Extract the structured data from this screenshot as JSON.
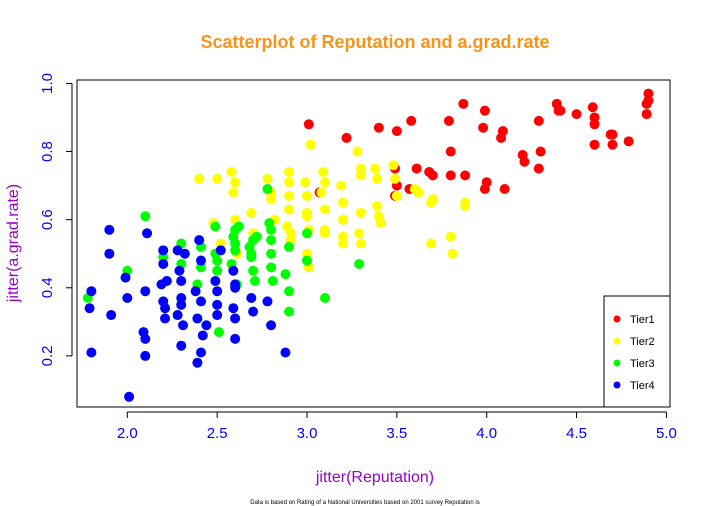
{
  "colors": {
    "title": "#f7941d",
    "axis_label": "#9900cc",
    "tick_label": "#0000ff",
    "axis_line": "#000000"
  },
  "chart_data": {
    "type": "scatter",
    "title": "Scatterplot of Reputation and a.grad.rate",
    "xlabel": "jitter(Reputation)",
    "ylabel": "jitter(a.grad.rate)",
    "xlim": [
      1.72,
      5.02
    ],
    "ylim": [
      0.05,
      1.01
    ],
    "xticks": [
      "2.0",
      "2.5",
      "3.0",
      "3.5",
      "4.0",
      "4.5",
      "5.0"
    ],
    "yticks": [
      "0.2",
      "0.4",
      "0.6",
      "0.8",
      "1.0"
    ],
    "legend_position": "bottom-right",
    "footnote": "Data is based on Rating of a National Universities based on 2001 survey Reputation is",
    "series": [
      {
        "name": "Tier1",
        "color": "#ff0000",
        "points": [
          [
            3.01,
            0.88
          ],
          [
            3.07,
            0.68
          ],
          [
            3.22,
            0.84
          ],
          [
            3.4,
            0.87
          ],
          [
            3.5,
            0.86
          ],
          [
            3.58,
            0.89
          ],
          [
            3.49,
            0.75
          ],
          [
            3.5,
            0.7
          ],
          [
            3.49,
            0.67
          ],
          [
            3.57,
            0.69
          ],
          [
            3.61,
            0.75
          ],
          [
            3.68,
            0.74
          ],
          [
            3.7,
            0.73
          ],
          [
            3.79,
            0.89
          ],
          [
            3.8,
            0.8
          ],
          [
            3.8,
            0.73
          ],
          [
            3.87,
            0.94
          ],
          [
            3.88,
            0.73
          ],
          [
            3.98,
            0.87
          ],
          [
            3.99,
            0.92
          ],
          [
            3.99,
            0.69
          ],
          [
            4.0,
            0.71
          ],
          [
            4.08,
            0.84
          ],
          [
            4.09,
            0.86
          ],
          [
            4.1,
            0.69
          ],
          [
            4.2,
            0.79
          ],
          [
            4.21,
            0.77
          ],
          [
            4.29,
            0.89
          ],
          [
            4.3,
            0.8
          ],
          [
            4.29,
            0.75
          ],
          [
            4.39,
            0.94
          ],
          [
            4.41,
            0.92
          ],
          [
            4.4,
            0.92
          ],
          [
            4.5,
            0.91
          ],
          [
            4.59,
            0.93
          ],
          [
            4.6,
            0.9
          ],
          [
            4.6,
            0.88
          ],
          [
            4.6,
            0.82
          ],
          [
            4.7,
            0.85
          ],
          [
            4.7,
            0.82
          ],
          [
            4.69,
            0.85
          ],
          [
            4.79,
            0.83
          ],
          [
            4.89,
            0.94
          ],
          [
            4.9,
            0.97
          ],
          [
            4.89,
            0.91
          ],
          [
            4.9,
            0.95
          ]
        ]
      },
      {
        "name": "Tier2",
        "color": "#ffff00",
        "points": [
          [
            2.4,
            0.72
          ],
          [
            2.5,
            0.72
          ],
          [
            2.58,
            0.74
          ],
          [
            2.6,
            0.71
          ],
          [
            2.59,
            0.68
          ],
          [
            2.6,
            0.6
          ],
          [
            2.69,
            0.62
          ],
          [
            2.7,
            0.56
          ],
          [
            2.78,
            0.72
          ],
          [
            2.8,
            0.66
          ],
          [
            2.8,
            0.68
          ],
          [
            2.82,
            0.6
          ],
          [
            2.9,
            0.74
          ],
          [
            2.9,
            0.71
          ],
          [
            2.9,
            0.67
          ],
          [
            2.9,
            0.63
          ],
          [
            2.89,
            0.58
          ],
          [
            2.91,
            0.56
          ],
          [
            2.91,
            0.54
          ],
          [
            2.99,
            0.71
          ],
          [
            3.0,
            0.67
          ],
          [
            3.0,
            0.62
          ],
          [
            3.0,
            0.61
          ],
          [
            3.01,
            0.57
          ],
          [
            3.0,
            0.5
          ],
          [
            3.01,
            0.46
          ],
          [
            3.02,
            0.82
          ],
          [
            3.09,
            0.74
          ],
          [
            3.1,
            0.71
          ],
          [
            3.08,
            0.68
          ],
          [
            3.1,
            0.63
          ],
          [
            3.1,
            0.57
          ],
          [
            3.1,
            0.56
          ],
          [
            3.19,
            0.7
          ],
          [
            3.2,
            0.65
          ],
          [
            3.2,
            0.6
          ],
          [
            3.2,
            0.6
          ],
          [
            3.2,
            0.55
          ],
          [
            3.2,
            0.53
          ],
          [
            3.28,
            0.8
          ],
          [
            3.3,
            0.75
          ],
          [
            3.3,
            0.73
          ],
          [
            3.3,
            0.62
          ],
          [
            3.29,
            0.56
          ],
          [
            3.3,
            0.53
          ],
          [
            3.38,
            0.75
          ],
          [
            3.39,
            0.72
          ],
          [
            3.39,
            0.64
          ],
          [
            3.4,
            0.61
          ],
          [
            3.41,
            0.59
          ],
          [
            3.48,
            0.76
          ],
          [
            3.49,
            0.72
          ],
          [
            3.5,
            0.67
          ],
          [
            3.6,
            0.69
          ],
          [
            3.62,
            0.68
          ],
          [
            3.69,
            0.65
          ],
          [
            3.7,
            0.66
          ],
          [
            3.69,
            0.53
          ],
          [
            3.8,
            0.55
          ],
          [
            3.81,
            0.5
          ],
          [
            3.88,
            0.65
          ],
          [
            3.88,
            0.64
          ],
          [
            2.48,
            0.59
          ],
          [
            2.52,
            0.53
          ],
          [
            2.61,
            0.5
          ]
        ]
      },
      {
        "name": "Tier3",
        "color": "#00ff00",
        "points": [
          [
            1.78,
            0.37
          ],
          [
            2.0,
            0.45
          ],
          [
            2.1,
            0.61
          ],
          [
            2.2,
            0.49
          ],
          [
            2.3,
            0.53
          ],
          [
            2.3,
            0.47
          ],
          [
            2.39,
            0.41
          ],
          [
            2.41,
            0.52
          ],
          [
            2.41,
            0.46
          ],
          [
            2.49,
            0.58
          ],
          [
            2.49,
            0.5
          ],
          [
            2.5,
            0.48
          ],
          [
            2.5,
            0.45
          ],
          [
            2.51,
            0.27
          ],
          [
            2.58,
            0.47
          ],
          [
            2.59,
            0.55
          ],
          [
            2.6,
            0.57
          ],
          [
            2.6,
            0.51
          ],
          [
            2.61,
            0.41
          ],
          [
            2.62,
            0.58
          ],
          [
            2.68,
            0.52
          ],
          [
            2.7,
            0.54
          ],
          [
            2.69,
            0.5
          ],
          [
            2.7,
            0.45
          ],
          [
            2.71,
            0.42
          ],
          [
            2.78,
            0.69
          ],
          [
            2.79,
            0.59
          ],
          [
            2.8,
            0.57
          ],
          [
            2.8,
            0.54
          ],
          [
            2.8,
            0.5
          ],
          [
            2.8,
            0.46
          ],
          [
            2.81,
            0.42
          ],
          [
            2.88,
            0.44
          ],
          [
            2.9,
            0.52
          ],
          [
            2.9,
            0.39
          ],
          [
            2.9,
            0.33
          ],
          [
            3.0,
            0.48
          ],
          [
            3.0,
            0.56
          ],
          [
            3.1,
            0.37
          ],
          [
            3.29,
            0.47
          ],
          [
            2.69,
            0.49
          ],
          [
            2.6,
            0.53
          ],
          [
            2.72,
            0.55
          ]
        ]
      },
      {
        "name": "Tier4",
        "color": "#0000ff",
        "points": [
          [
            1.8,
            0.39
          ],
          [
            1.79,
            0.34
          ],
          [
            1.8,
            0.21
          ],
          [
            1.9,
            0.57
          ],
          [
            1.9,
            0.5
          ],
          [
            1.91,
            0.32
          ],
          [
            1.99,
            0.43
          ],
          [
            2.0,
            0.37
          ],
          [
            2.01,
            0.08
          ],
          [
            2.09,
            0.27
          ],
          [
            2.1,
            0.25
          ],
          [
            2.1,
            0.2
          ],
          [
            2.1,
            0.39
          ],
          [
            2.11,
            0.56
          ],
          [
            2.19,
            0.41
          ],
          [
            2.2,
            0.51
          ],
          [
            2.2,
            0.47
          ],
          [
            2.2,
            0.36
          ],
          [
            2.21,
            0.34
          ],
          [
            2.21,
            0.31
          ],
          [
            2.28,
            0.51
          ],
          [
            2.29,
            0.45
          ],
          [
            2.3,
            0.42
          ],
          [
            2.3,
            0.37
          ],
          [
            2.3,
            0.35
          ],
          [
            2.31,
            0.29
          ],
          [
            2.3,
            0.23
          ],
          [
            2.38,
            0.39
          ],
          [
            2.39,
            0.31
          ],
          [
            2.39,
            0.18
          ],
          [
            2.4,
            0.54
          ],
          [
            2.41,
            0.48
          ],
          [
            2.41,
            0.36
          ],
          [
            2.42,
            0.26
          ],
          [
            2.41,
            0.21
          ],
          [
            2.49,
            0.42
          ],
          [
            2.5,
            0.39
          ],
          [
            2.5,
            0.35
          ],
          [
            2.5,
            0.32
          ],
          [
            2.52,
            0.51
          ],
          [
            2.59,
            0.45
          ],
          [
            2.6,
            0.41
          ],
          [
            2.6,
            0.4
          ],
          [
            2.59,
            0.34
          ],
          [
            2.6,
            0.31
          ],
          [
            2.6,
            0.25
          ],
          [
            2.69,
            0.37
          ],
          [
            2.7,
            0.33
          ],
          [
            2.78,
            0.36
          ],
          [
            2.8,
            0.29
          ],
          [
            2.88,
            0.21
          ],
          [
            2.22,
            0.42
          ],
          [
            2.32,
            0.5
          ],
          [
            2.28,
            0.32
          ],
          [
            2.44,
            0.29
          ]
        ]
      }
    ]
  }
}
